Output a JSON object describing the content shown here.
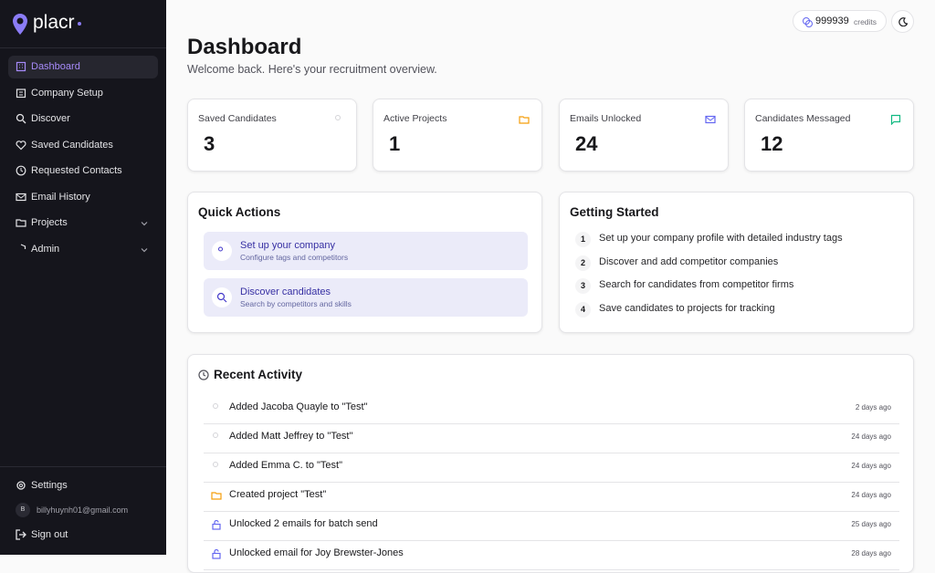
{
  "brand": "placr",
  "nav": [
    "Dashboard",
    "Company Setup",
    "Discover",
    "Saved Candidates",
    "Requested Contacts",
    "Email History",
    "Projects",
    "Admin"
  ],
  "footer": {
    "settings": "Settings",
    "avatar": "B",
    "email": "billyhuynh01@gmail.com",
    "signout": "Sign out"
  },
  "credits": {
    "amount": 999939,
    "label": "credits"
  },
  "header": {
    "title": "Dashboard",
    "subtitle": "Welcome back. Here's your recruitment overview."
  },
  "stats": [
    {
      "label": "Saved Candidates",
      "value": 3
    },
    {
      "label": "Active Projects",
      "value": 1
    },
    {
      "label": "Emails Unlocked",
      "value": 24
    },
    {
      "label": "Candidates Messaged",
      "value": 12
    }
  ],
  "quick_actions": {
    "title": "Quick Actions",
    "items": [
      {
        "title": "Set up your company",
        "subtitle": "Configure tags and competitors"
      },
      {
        "title": "Discover candidates",
        "subtitle": "Search by competitors and skills"
      }
    ]
  },
  "getting_started": {
    "title": "Getting Started",
    "steps": [
      {
        "n": 1,
        "text": "Set up your company profile with detailed industry tags"
      },
      {
        "n": 2,
        "text": "Discover and add competitor companies"
      },
      {
        "n": 3,
        "text": "Search for candidates from competitor firms"
      },
      {
        "n": 4,
        "text": "Save candidates to projects for tracking"
      }
    ]
  },
  "recent_activity": {
    "title": "Recent Activity",
    "items": [
      {
        "text": "Added Jacoba Quayle to \"Test\"",
        "time": "2 days ago"
      },
      {
        "text": "Added Matt Jeffrey to \"Test\"",
        "time": "24 days ago"
      },
      {
        "text": "Added Emma C. to \"Test\"",
        "time": "24 days ago"
      },
      {
        "text": "Created project \"Test\"",
        "time": "24 days ago"
      },
      {
        "text": "Unlocked 2 emails for batch send",
        "time": "25 days ago"
      },
      {
        "text": "Unlocked email for Joy Brewster-Jones",
        "time": "28 days ago"
      }
    ]
  }
}
